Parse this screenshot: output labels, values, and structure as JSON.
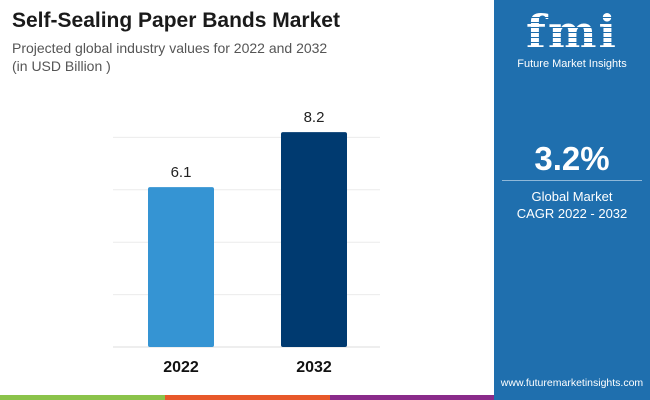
{
  "header": {
    "title": "Self-Sealing Paper Bands Market",
    "subtitle": "Projected global industry values for 2022 and 2032",
    "unit": "(in USD Billion )"
  },
  "chart_data": {
    "type": "bar",
    "categories": [
      "2022",
      "2032"
    ],
    "values": [
      6.1,
      8.2
    ],
    "data_labels": [
      "6.1",
      "8.2"
    ],
    "ylim": [
      0,
      8
    ],
    "yticks": [
      0,
      2,
      4,
      6,
      8
    ],
    "grid": true,
    "colors": [
      "#3594d3",
      "#003a70"
    ],
    "title": "Self-Sealing Paper Bands Market",
    "xlabel": "",
    "ylabel": ""
  },
  "panel": {
    "logo_text": "fmi",
    "brand": "Future Market Insights",
    "cagr": "3.2%",
    "cagr_label_1": "Global Market",
    "cagr_label_2": "CAGR 2022 - 2032",
    "url": "www.futuremarketinsights.com",
    "color": "#1f6fae"
  },
  "footer_colors": [
    "#8bc34a",
    "#e8582a",
    "#8a2b8a"
  ]
}
